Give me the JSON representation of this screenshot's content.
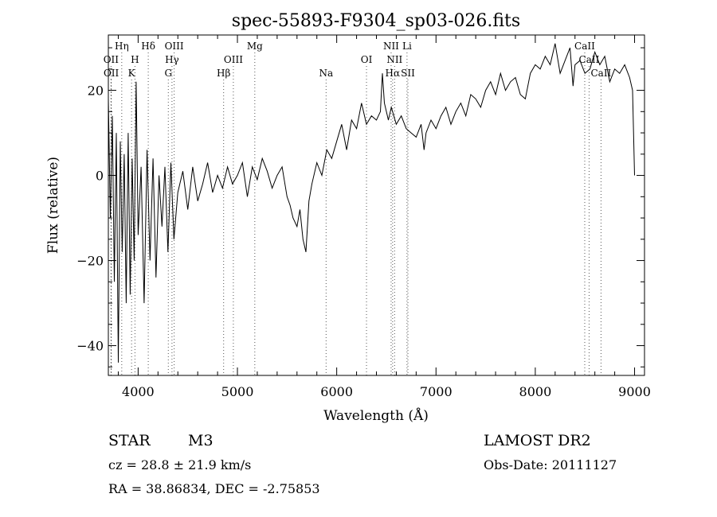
{
  "chart_data": {
    "type": "line",
    "title": "spec-55893-F9304_sp03-026.fits",
    "xlabel": "Wavelength (Å)",
    "ylabel": "Flux (relative)",
    "xlim": [
      3700,
      9100
    ],
    "ylim": [
      -47,
      33
    ],
    "x_ticks": [
      4000,
      5000,
      6000,
      7000,
      8000,
      9000
    ],
    "y_ticks": [
      -40,
      -20,
      0,
      20
    ],
    "grid": false,
    "series": [
      {
        "x": [
          3700,
          3720,
          3740,
          3760,
          3780,
          3800,
          3820,
          3840,
          3860,
          3880,
          3900,
          3920,
          3940,
          3960,
          3980,
          4000,
          4030,
          4060,
          4090,
          4120,
          4150,
          4180,
          4210,
          4240,
          4270,
          4300,
          4330,
          4360,
          4400,
          4450,
          4500,
          4550,
          4600,
          4650,
          4700,
          4750,
          4800,
          4850,
          4900,
          4950,
          5000,
          5050,
          5100,
          5150,
          5200,
          5250,
          5300,
          5350,
          5400,
          5450,
          5500,
          5530,
          5560,
          5600,
          5630,
          5660,
          5690,
          5720,
          5750,
          5800,
          5850,
          5900,
          5950,
          6000,
          6050,
          6100,
          6150,
          6200,
          6250,
          6300,
          6350,
          6400,
          6440,
          6460,
          6480,
          6500,
          6520,
          6550,
          6600,
          6650,
          6700,
          6750,
          6800,
          6850,
          6880,
          6900,
          6950,
          7000,
          7050,
          7100,
          7150,
          7200,
          7250,
          7300,
          7350,
          7400,
          7450,
          7500,
          7550,
          7600,
          7650,
          7700,
          7750,
          7800,
          7850,
          7900,
          7950,
          8000,
          8050,
          8100,
          8150,
          8200,
          8250,
          8300,
          8350,
          8380,
          8400,
          8450,
          8500,
          8550,
          8600,
          8650,
          8700,
          8750,
          8800,
          8850,
          8900,
          8950,
          8980,
          9000
        ],
        "y": [
          18,
          -10,
          14,
          -25,
          10,
          -44,
          8,
          -18,
          5,
          -30,
          10,
          -28,
          4,
          -20,
          22,
          -14,
          2,
          -30,
          6,
          -20,
          4,
          -24,
          0,
          -12,
          2,
          -18,
          3,
          -15,
          -4,
          1,
          -8,
          2,
          -6,
          -2,
          3,
          -4,
          0,
          -3,
          2,
          -2,
          0,
          3,
          -5,
          2,
          -1,
          4,
          1,
          -3,
          0,
          2,
          -5,
          -7,
          -10,
          -12,
          -8,
          -15,
          -18,
          -6,
          -2,
          3,
          0,
          6,
          4,
          8,
          12,
          6,
          13,
          11,
          17,
          12,
          14,
          13,
          15,
          24,
          17,
          15,
          13,
          16,
          12,
          14,
          11,
          10,
          9,
          12,
          6,
          10,
          13,
          11,
          14,
          16,
          12,
          15,
          17,
          14,
          19,
          18,
          16,
          20,
          22,
          19,
          24,
          20,
          22,
          23,
          19,
          18,
          24,
          26,
          25,
          28,
          26,
          31,
          24,
          27,
          30,
          21,
          26,
          27,
          24,
          25,
          29,
          26,
          28,
          22,
          25,
          24,
          26,
          23,
          20,
          0
        ]
      }
    ],
    "lines": [
      {
        "label": "Hη",
        "x": 3835,
        "row": 0
      },
      {
        "label": "OII",
        "x": 3727,
        "row": 1
      },
      {
        "label": "H",
        "x": 3968,
        "row": 1
      },
      {
        "label": "OII",
        "x": 3729,
        "row": 2
      },
      {
        "label": "K",
        "x": 3934,
        "row": 2
      },
      {
        "label": "Hδ",
        "x": 4102,
        "row": 0
      },
      {
        "label": "OIII",
        "x": 4363,
        "row": 0
      },
      {
        "label": "Hγ",
        "x": 4341,
        "row": 1
      },
      {
        "label": "G",
        "x": 4304,
        "row": 2
      },
      {
        "label": "Hβ",
        "x": 4861,
        "row": 2
      },
      {
        "label": "OIII",
        "x": 4959,
        "row": 1
      },
      {
        "label": "Mg",
        "x": 5175,
        "row": 0
      },
      {
        "label": "Na",
        "x": 5893,
        "row": 2
      },
      {
        "label": "OI",
        "x": 6300,
        "row": 1
      },
      {
        "label": "NII",
        "x": 6548,
        "row": 0
      },
      {
        "label": "Li",
        "x": 6708,
        "row": 0
      },
      {
        "label": "NII",
        "x": 6583,
        "row": 1
      },
      {
        "label": "Hα",
        "x": 6563,
        "row": 2
      },
      {
        "label": "SII",
        "x": 6717,
        "row": 2
      },
      {
        "label": "CaII",
        "x": 8498,
        "row": 0
      },
      {
        "label": "CaII",
        "x": 8542,
        "row": 1
      },
      {
        "label": "CaII",
        "x": 8662,
        "row": 2
      }
    ]
  },
  "info": {
    "class": "STAR",
    "subclass": "M3",
    "survey": "LAMOST DR2",
    "cz": "cz = 28.8 ± 21.9 km/s",
    "obs_date": "Obs-Date: 20111127",
    "coords": "RA =  38.86834, DEC =  -2.75853"
  }
}
